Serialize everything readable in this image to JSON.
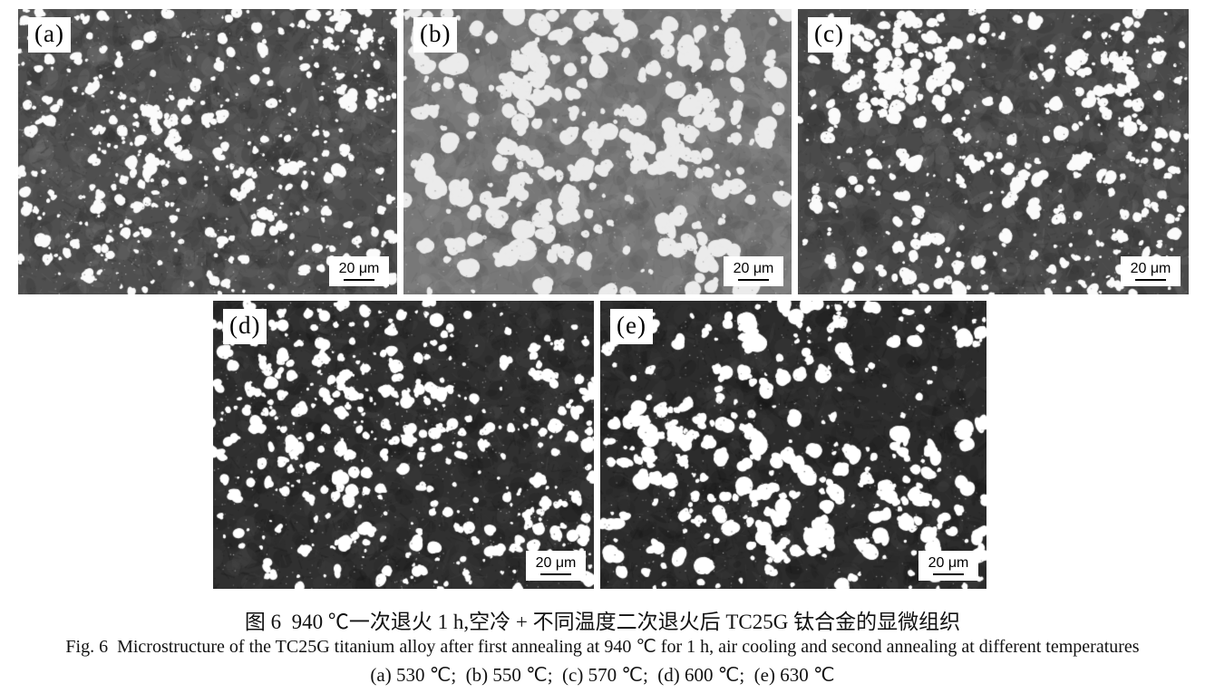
{
  "figure": {
    "caption_cn": "图 6  940 ℃一次退火 1 h,空冷 + 不同温度二次退火后 TC25G 钛合金的显微组织",
    "caption_en": "Fig. 6  Microstructure of the TC25G titanium alloy after first annealing at 940 ℃ for 1 h, air cooling and second annealing at different temperatures",
    "caption_sub": "(a) 530 ℃;  (b) 550 ℃;  (c) 570 ℃;  (d) 600 ℃;  (e) 630 ℃"
  },
  "panels": [
    {
      "id": "a",
      "label": "(a)",
      "temperature": "530 ℃",
      "scale_label": "20 μm",
      "appearance": {
        "seed": 1,
        "bg": "#4f4f4f",
        "dark": "#2c2c2c",
        "light": "#7a7a7a",
        "particle": "#fbfbfb",
        "count": 520,
        "rmin": 1.5,
        "rmax": 7.5,
        "pow": 1.7,
        "patches": 700,
        "streaks": 1000,
        "speckles": 1200
      }
    },
    {
      "id": "b",
      "label": "(b)",
      "temperature": "550 ℃",
      "scale_label": "20 μm",
      "appearance": {
        "seed": 2,
        "bg": "#787878",
        "dark": "#565656",
        "light": "#949494",
        "particle": "#ebebeb",
        "count": 300,
        "rmin": 2.5,
        "rmax": 13,
        "pow": 1.35,
        "patches": 900,
        "streaks": 800,
        "speckles": 800
      }
    },
    {
      "id": "c",
      "label": "(c)",
      "temperature": "570 ℃",
      "scale_label": "20 μm",
      "appearance": {
        "seed": 3,
        "bg": "#4a4a4a",
        "dark": "#2a2a2a",
        "light": "#737373",
        "particle": "#fbfbfb",
        "count": 460,
        "rmin": 1.5,
        "rmax": 8.5,
        "pow": 1.6,
        "patches": 700,
        "streaks": 900,
        "speckles": 1100
      }
    },
    {
      "id": "d",
      "label": "(d)",
      "temperature": "600 ℃",
      "scale_label": "20 μm",
      "appearance": {
        "seed": 4,
        "bg": "#303030",
        "dark": "#161616",
        "light": "#4c4c4c",
        "particle": "#ffffff",
        "count": 500,
        "rmin": 1.5,
        "rmax": 8,
        "pow": 1.55,
        "patches": 600,
        "streaks": 900,
        "speckles": 1200
      }
    },
    {
      "id": "e",
      "label": "(e)",
      "temperature": "630 ℃",
      "scale_label": "20 μm",
      "appearance": {
        "seed": 5,
        "bg": "#2c2c2c",
        "dark": "#141414",
        "light": "#484848",
        "particle": "#ffffff",
        "count": 380,
        "rmin": 2,
        "rmax": 10.5,
        "pow": 1.5,
        "patches": 600,
        "streaks": 800,
        "speckles": 1000
      }
    }
  ]
}
